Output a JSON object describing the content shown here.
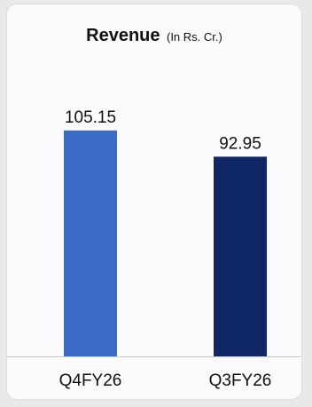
{
  "chart_data": {
    "type": "bar",
    "title": "Revenue",
    "subtitle": "(In Rs. Cr.)",
    "categories": [
      "Q4FY26",
      "Q3FY26"
    ],
    "values": [
      105.15,
      92.95
    ],
    "value_labels": [
      "105.15",
      "92.95"
    ],
    "colors": [
      "#3a6bc7",
      "#0f2765"
    ],
    "ylim": [
      0,
      115
    ],
    "grid": false,
    "legend": "none"
  }
}
